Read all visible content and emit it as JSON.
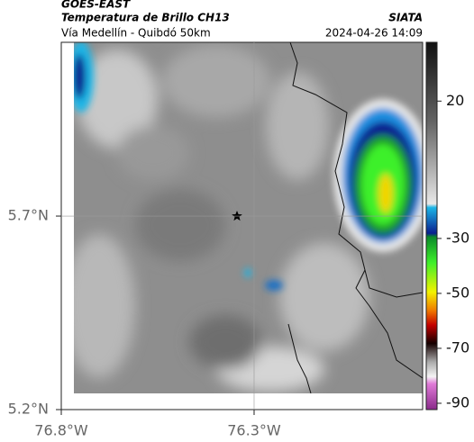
{
  "header": {
    "satellite": "GOES-EAST",
    "product": "Temperatura de Brillo CH13",
    "route": "Vía Medellín - Quibdó 50km",
    "source": "SIATA",
    "timestamp": "2024-04-26 14:09"
  },
  "map": {
    "xlim": [
      -76.8,
      -75.863
    ],
    "ylim": [
      5.2,
      6.149
    ],
    "xticks": [
      {
        "value": -76.8,
        "label": "76.8°W"
      },
      {
        "value": -76.3,
        "label": "76.3°W"
      }
    ],
    "yticks": [
      {
        "value": 5.7,
        "label": "5.7°N"
      },
      {
        "value": 5.2,
        "label": "5.2°N"
      }
    ]
  },
  "colorbar": {
    "lim": [
      -92.3,
      41.4
    ],
    "ticks": [
      20,
      -30,
      -50,
      -70,
      -90
    ]
  }
}
